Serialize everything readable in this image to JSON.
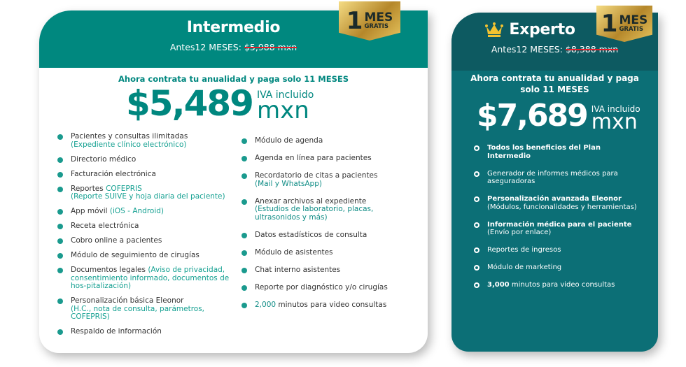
{
  "badge": {
    "number": "1",
    "word": "MES",
    "sub": "GRATIS"
  },
  "intermedio": {
    "title": "Intermedio",
    "before_label": "Antes12 MESES:",
    "before_price": "$5,988 mxn",
    "offer": "Ahora contrata tu anualidad y paga solo 11 MESES",
    "price": "$5,489",
    "iva": "IVA incluido",
    "currency": "mxn",
    "col1": [
      {
        "text": "Pacientes y consultas ilimitadas",
        "detail": "(Expediente clínico electrónico)"
      },
      {
        "text": "Directorio médico"
      },
      {
        "text": "Facturación electrónica"
      },
      {
        "text": "Reportes",
        "inline": "COFEPRIS",
        "detail": "(Reporte SUIVE y hoja diaria del paciente)"
      },
      {
        "text": "App móvil",
        "inline": "(iOS - Android)"
      },
      {
        "text": "Receta electrónica"
      },
      {
        "text": "Cobro online a pacientes"
      },
      {
        "text": "Módulo de seguimiento de cirugías"
      },
      {
        "text": "Documentos legales",
        "inline": "(Aviso de privacidad, consentimiento informado, documentos de hos-pitalización)"
      },
      {
        "text": "Personalización básica Eleonor",
        "detail": "(H.C., nota de consulta, parámetros, COFEPRIS)"
      },
      {
        "text": "Respaldo de información"
      }
    ],
    "col2": [
      {
        "text": "Módulo de agenda"
      },
      {
        "text": "Agenda en línea para pacientes"
      },
      {
        "text": "Recordatorio de citas a pacientes",
        "detail": "(Mail y WhatsApp)"
      },
      {
        "text": "Anexar archivos al expediente",
        "detail": "(Estudios de laboratorio, placas, ultrasonidos y más)"
      },
      {
        "text": "Datos estadísticos de consulta"
      },
      {
        "text": "Módulo de asistentes"
      },
      {
        "text": "Chat interno asistentes"
      },
      {
        "text": "Reporte por diagnóstico y/o cirugías"
      },
      {
        "lead": "2,000",
        "text": "minutos para video consultas"
      }
    ]
  },
  "experto": {
    "title": "Experto",
    "icon": "crown-icon",
    "before_label": "Antes12 MESES:",
    "before_price": "$8,388 mxn",
    "offer": "Ahora contrata tu anualidad y paga solo 11 MESES",
    "price": "$7,689",
    "iva": "IVA incluido",
    "currency": "mxn",
    "items": [
      {
        "lead": "Todos los beneficios del Plan Intermedio"
      },
      {
        "text": "Generador de informes médicos para aseguradoras"
      },
      {
        "lead": "Personalización avanzada Eleonor",
        "detail": "(Módulos, funcionalidades y herramientas)"
      },
      {
        "lead": "Información médica para el paciente",
        "detail": "(Envío por enlace)"
      },
      {
        "text": "Reportes de ingresos"
      },
      {
        "text": "Módulo de marketing"
      },
      {
        "lead": "3,000",
        "text": "minutos para video consultas"
      }
    ]
  },
  "colors": {
    "teal": "#00887f",
    "dark_teal": "#0d5a61",
    "expert_body": "#0c6f76",
    "strike": "#e0202a",
    "gold": "#d4aa48"
  }
}
